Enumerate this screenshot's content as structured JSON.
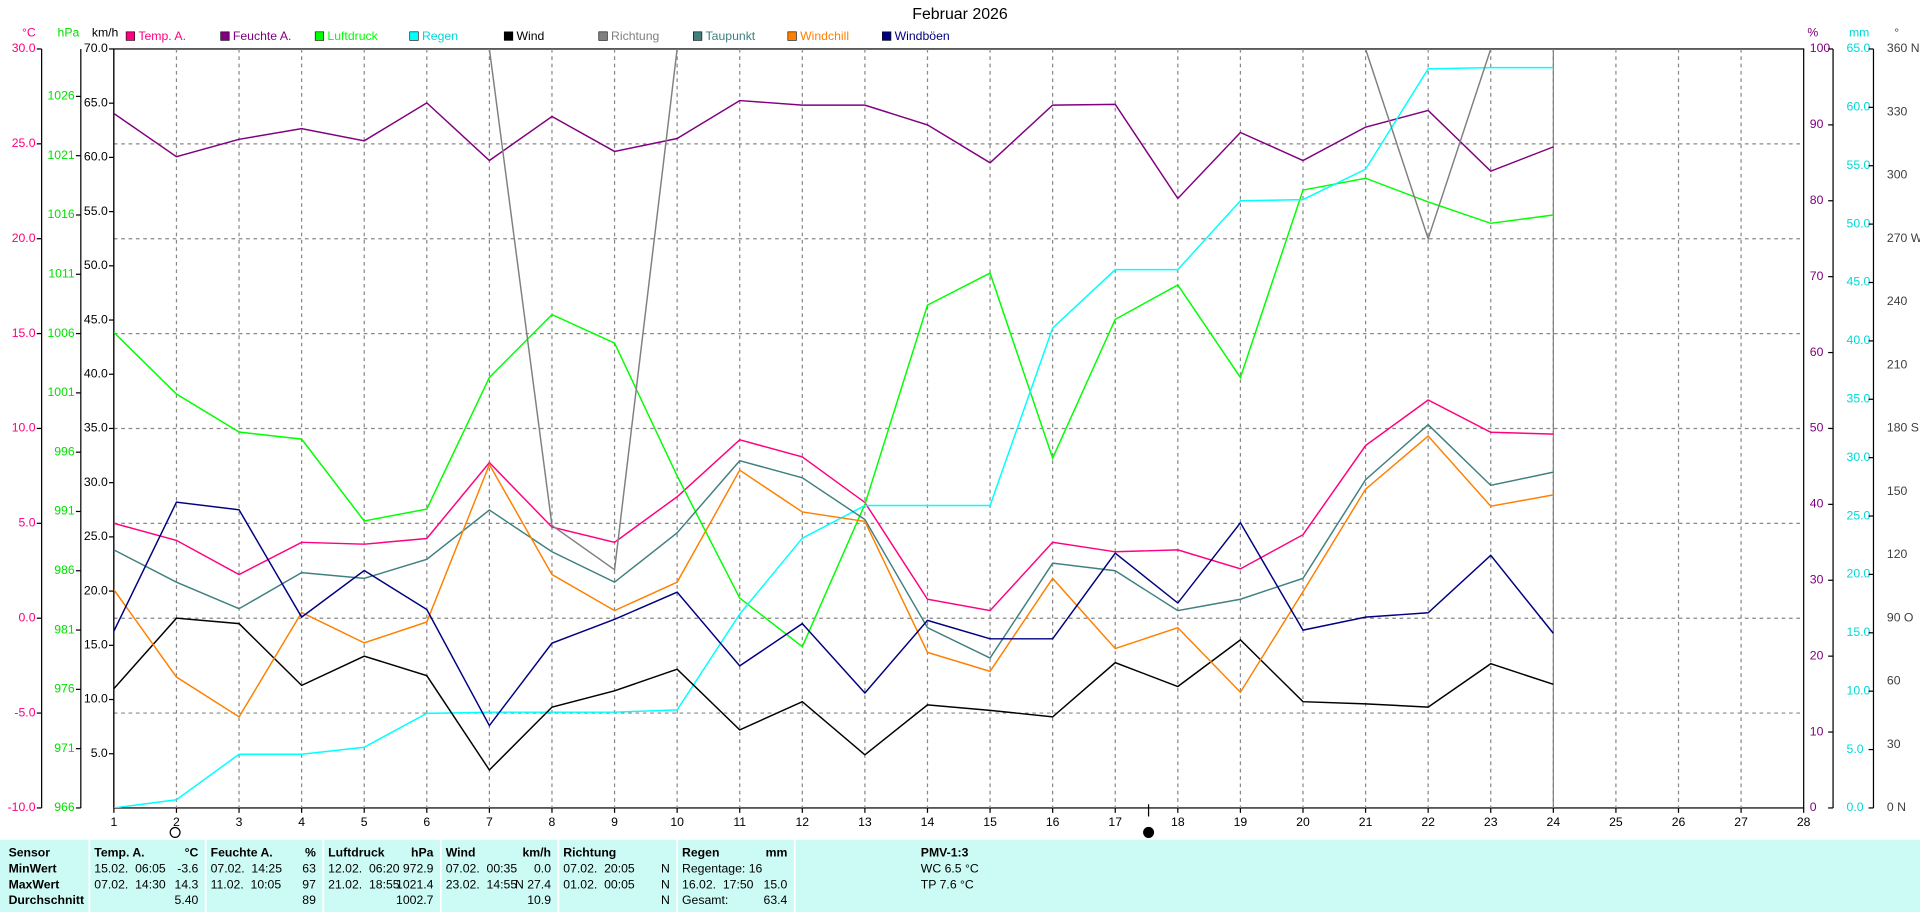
{
  "chart_data": {
    "type": "line",
    "title": "Februar 2026",
    "xlim": [
      1,
      28
    ],
    "xticks": [
      1,
      2,
      3,
      4,
      5,
      6,
      7,
      8,
      9,
      10,
      11,
      12,
      13,
      14,
      15,
      16,
      17,
      18,
      19,
      20,
      21,
      22,
      23,
      24,
      25,
      26,
      27,
      28
    ],
    "grid": true,
    "x": [
      1,
      2,
      3,
      4,
      5,
      6,
      7,
      8,
      9,
      10,
      11,
      12,
      13,
      14,
      15,
      16,
      17,
      18,
      19,
      20,
      21,
      22,
      23,
      24
    ],
    "axes": [
      {
        "unit": "°C",
        "side": "left",
        "color": "#ff0080",
        "lim": [
          -10,
          30
        ],
        "ticks": [
          {
            "value": -10,
            "label": "-10.0"
          },
          {
            "value": -5,
            "label": "-5.0"
          },
          {
            "value": 0,
            "label": "0.0"
          },
          {
            "value": 5,
            "label": "5.0"
          },
          {
            "value": 10,
            "label": "10.0"
          },
          {
            "value": 15,
            "label": "15.0"
          },
          {
            "value": 20,
            "label": "20.0"
          },
          {
            "value": 25,
            "label": "25.0"
          },
          {
            "value": 30,
            "label": "30.0"
          }
        ]
      },
      {
        "unit": "hPa",
        "side": "left",
        "color": "#00e000",
        "lim": [
          966,
          1030
        ],
        "ticks": [
          966,
          971,
          976,
          981,
          986,
          991,
          996,
          1001,
          1006,
          1011,
          1016,
          1021,
          1026
        ]
      },
      {
        "unit": "km/h",
        "side": "left",
        "color": "#000000",
        "lim": [
          0,
          70
        ],
        "ticks": [
          {
            "value": 5,
            "label": "5.0"
          },
          {
            "value": 10,
            "label": "10.0"
          },
          {
            "value": 15,
            "label": "15.0"
          },
          {
            "value": 20,
            "label": "20.0"
          },
          {
            "value": 25,
            "label": "25.0"
          },
          {
            "value": 30,
            "label": "30.0"
          },
          {
            "value": 35,
            "label": "35.0"
          },
          {
            "value": 40,
            "label": "40.0"
          },
          {
            "value": 45,
            "label": "45.0"
          },
          {
            "value": 50,
            "label": "50.0"
          },
          {
            "value": 55,
            "label": "55.0"
          },
          {
            "value": 60,
            "label": "60.0"
          },
          {
            "value": 65,
            "label": "65.0"
          },
          {
            "value": 70,
            "label": "70.0"
          }
        ]
      },
      {
        "unit": "%",
        "side": "right",
        "color": "#800080",
        "lim": [
          0,
          100
        ],
        "ticks": [
          0,
          10,
          20,
          30,
          40,
          50,
          60,
          70,
          80,
          90,
          100
        ]
      },
      {
        "unit": "mm",
        "side": "right",
        "color": "#00d8d8",
        "lim": [
          0,
          65
        ],
        "ticks": [
          {
            "value": 0,
            "label": "0.0"
          },
          {
            "value": 5,
            "label": "5.0"
          },
          {
            "value": 10,
            "label": "10.0"
          },
          {
            "value": 15,
            "label": "15.0"
          },
          {
            "value": 20,
            "label": "20.0"
          },
          {
            "value": 25,
            "label": "25.0"
          },
          {
            "value": 30,
            "label": "30.0"
          },
          {
            "value": 35,
            "label": "35.0"
          },
          {
            "value": 40,
            "label": "40.0"
          },
          {
            "value": 45,
            "label": "45.0"
          },
          {
            "value": 50,
            "label": "50.0"
          },
          {
            "value": 55,
            "label": "55.0"
          },
          {
            "value": 60,
            "label": "60.0"
          },
          {
            "value": 65,
            "label": "65.0"
          }
        ]
      },
      {
        "unit": "°",
        "side": "right",
        "color": "#404040",
        "lim": [
          0,
          360
        ],
        "ticks": [
          {
            "value": 0,
            "label": "0 N"
          },
          30,
          60,
          {
            "value": 90,
            "label": "90 O"
          },
          120,
          150,
          {
            "value": 180,
            "label": "180 S"
          },
          210,
          240,
          {
            "value": 270,
            "label": "270 W"
          },
          300,
          330,
          {
            "value": 360,
            "label": "360 N"
          }
        ]
      }
    ],
    "series": [
      {
        "name": "Temp. A.",
        "color": "#ff0080",
        "axis": 0,
        "values": [
          5.0,
          4.1,
          2.3,
          4.0,
          3.9,
          4.2,
          8.2,
          4.8,
          4.0,
          6.4,
          9.4,
          8.5,
          6.1,
          1.0,
          0.4,
          4.0,
          3.5,
          3.6,
          2.6,
          4.4,
          9.1,
          11.5,
          9.8,
          9.7
        ]
      },
      {
        "name": "Feuchte A.",
        "color": "#800080",
        "axis": 3,
        "values": [
          91.5,
          85.8,
          88.1,
          89.5,
          87.9,
          92.9,
          85.3,
          91.1,
          86.5,
          88.2,
          93.2,
          92.6,
          92.6,
          90.0,
          85.0,
          92.6,
          92.7,
          80.3,
          89.0,
          85.3,
          89.7,
          91.9,
          83.9,
          87.1
        ]
      },
      {
        "name": "Luftdruck",
        "color": "#00ff00",
        "axis": 1,
        "values": [
          1006.1,
          1000.9,
          997.7,
          997.1,
          990.2,
          991.2,
          1002.3,
          1007.6,
          1005.2,
          994.0,
          983.7,
          979.6,
          991.6,
          1008.4,
          1011.1,
          995.5,
          1007.2,
          1010.1,
          1002.3,
          1018.1,
          1019.1,
          1017.1,
          1015.3,
          1016.0
        ]
      },
      {
        "name": "Regen",
        "color": "#00ffff",
        "axis": 4,
        "values": [
          0,
          0.7,
          4.6,
          4.6,
          5.2,
          8.1,
          8.2,
          8.2,
          8.2,
          8.4,
          16.6,
          23.1,
          25.9,
          25.9,
          25.9,
          41.1,
          46.1,
          46.1,
          52.0,
          52.1,
          54.7,
          63.3,
          63.4,
          63.4
        ]
      },
      {
        "name": "Wind",
        "color": "#000000",
        "axis": 2,
        "values": [
          11.0,
          17.5,
          17.0,
          11.3,
          14.0,
          12.2,
          3.5,
          9.3,
          10.8,
          12.8,
          7.2,
          9.8,
          4.9,
          9.5,
          9.0,
          8.4,
          13.4,
          11.2,
          15.5,
          9.8,
          9.6,
          9.3,
          13.3,
          11.4
        ]
      },
      {
        "name": "Richtung",
        "color": "#808080",
        "axis": 5,
        "values": [
          null,
          null,
          null,
          null,
          null,
          null,
          360,
          134,
          113,
          360,
          null,
          null,
          null,
          null,
          null,
          null,
          null,
          null,
          null,
          null,
          360,
          270,
          360,
          null
        ]
      },
      {
        "name": "Taupunkt",
        "color": "#408080",
        "axis": 0,
        "values": [
          3.6,
          1.9,
          0.5,
          2.4,
          2.1,
          3.1,
          5.7,
          3.5,
          1.9,
          4.5,
          8.3,
          7.4,
          5.2,
          -0.5,
          -2.1,
          2.9,
          2.5,
          0.4,
          1.0,
          2.1,
          7.3,
          10.2,
          7.0,
          7.7
        ]
      },
      {
        "name": "Windchill",
        "color": "#ff8000",
        "axis": 0,
        "values": [
          1.5,
          -3.1,
          -5.2,
          0.3,
          -1.3,
          -0.2,
          8.1,
          2.3,
          0.4,
          1.9,
          7.8,
          5.6,
          5.1,
          -1.8,
          -2.8,
          2.1,
          -1.6,
          -0.5,
          -3.9,
          1.4,
          6.8,
          9.6,
          5.9,
          6.5
        ]
      },
      {
        "name": "Windböen",
        "color": "#000080",
        "axis": 2,
        "values": [
          16.3,
          28.2,
          27.5,
          17.6,
          21.9,
          18.3,
          7.6,
          15.2,
          17.4,
          19.9,
          13.1,
          17.0,
          10.6,
          17.3,
          15.6,
          15.6,
          23.5,
          18.9,
          26.3,
          16.4,
          17.6,
          18.0,
          23.3,
          16.1
        ]
      }
    ]
  },
  "stats": {
    "row_labels": [
      "Sensor",
      "MinWert",
      "MaxWert",
      "Durchschnitt"
    ],
    "columns": [
      {
        "title": "Temp. A.",
        "unit": "°C",
        "rows": [
          {
            "date": "15.02.  06:05",
            "value": "-3.6"
          },
          {
            "date": "07.02.  14:30",
            "value": "14.3"
          },
          {
            "value": "5.40"
          }
        ]
      },
      {
        "title": "Feuchte A.",
        "unit": "%",
        "rows": [
          {
            "date": "07.02.  14:25",
            "value": "63"
          },
          {
            "date": "11.02.  10:05",
            "value": "97"
          },
          {
            "value": "89"
          }
        ]
      },
      {
        "title": "Luftdruck",
        "unit": "hPa",
        "rows": [
          {
            "date": "12.02.  06:20",
            "value": "972.9"
          },
          {
            "date": "21.02.  18:55",
            "value": "1021.4"
          },
          {
            "value": "1002.7"
          }
        ]
      },
      {
        "title": "Wind",
        "unit": "km/h",
        "rows": [
          {
            "date": "07.02.  00:35",
            "value": "0.0"
          },
          {
            "date": "23.02.  14:55",
            "value": "N 27.4"
          },
          {
            "value": "10.9"
          }
        ]
      },
      {
        "title": "Richtung",
        "rows": [
          {
            "date": "07.02.  20:05",
            "value": "N"
          },
          {
            "date": "01.02.  00:05",
            "value": "N"
          },
          {
            "value": "N"
          }
        ]
      },
      {
        "title": "Regen",
        "unit": "mm",
        "rows": [
          {
            "date": "Regentage: 16"
          },
          {
            "date": "16.02.  17:50",
            "value": "15.0"
          },
          {
            "date": "Gesamt:",
            "value": "63.4"
          }
        ]
      }
    ],
    "pmv": {
      "title": "PMV-1:3",
      "lines": [
        "WC 6.5 °C",
        "TP 7.6 °C"
      ]
    }
  }
}
